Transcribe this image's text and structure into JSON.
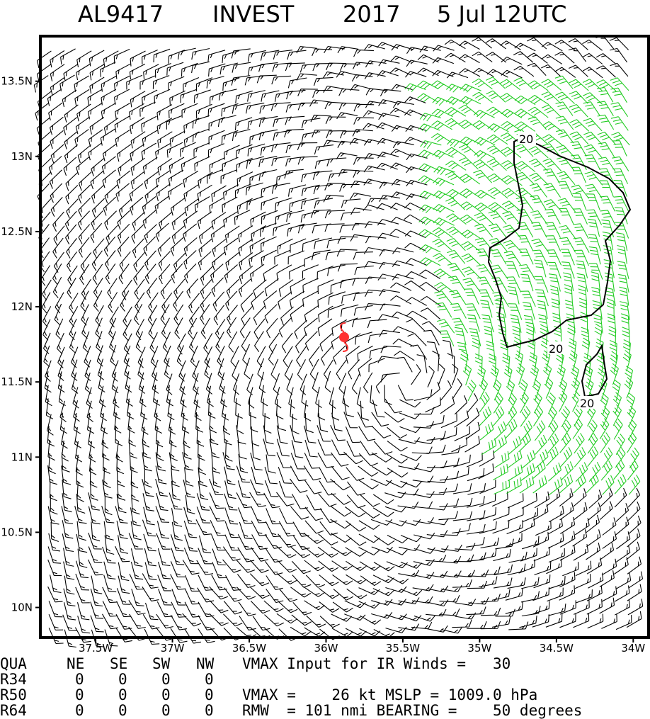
{
  "title": {
    "storm_id": "AL9417",
    "storm_type": "INVEST",
    "year": "2017",
    "date": "5 Jul 12UTC"
  },
  "axes": {
    "lat_labels": [
      "13.5N",
      "13N",
      "12.5N",
      "12N",
      "11.5N",
      "11N",
      "10.5N",
      "10N"
    ],
    "lon_labels": [
      "37.5W",
      "37W",
      "36.5W",
      "36W",
      "35.5W",
      "35W",
      "34.5W",
      "34W"
    ],
    "lat_values": [
      13.5,
      13.0,
      12.5,
      12.0,
      11.5,
      11.0,
      10.5,
      10.0
    ],
    "lon_values": [
      -37.5,
      -37.0,
      -36.5,
      -36.0,
      -35.5,
      -35.0,
      -34.5,
      -34.0
    ],
    "lat_range": [
      9.8,
      13.8
    ],
    "lon_range": [
      -37.86,
      -33.9
    ]
  },
  "storm_center": {
    "lon": -35.9,
    "lat": 11.8,
    "color": "#ff3333"
  },
  "contour": {
    "label": "20",
    "value_kt": 20
  },
  "wind_colors": {
    "below_20kt": "#000000",
    "above_20kt": "#22cc22"
  },
  "table": {
    "header": [
      "QUA",
      "NE",
      "SE",
      "SW",
      "NW"
    ],
    "rows": [
      {
        "label": "R34",
        "values": [
          "0",
          "0",
          "0",
          "0"
        ]
      },
      {
        "label": "R50",
        "values": [
          "0",
          "0",
          "0",
          "0"
        ]
      },
      {
        "label": "R64",
        "values": [
          "0",
          "0",
          "0",
          "0"
        ]
      }
    ]
  },
  "info": {
    "line1": "VMAX Input for IR Winds =   30",
    "line2": "VMAX =    26 kt MSLP = 1009.0 hPa",
    "line3": "RMW  = 101 nmi BEARING =    50 degrees"
  }
}
